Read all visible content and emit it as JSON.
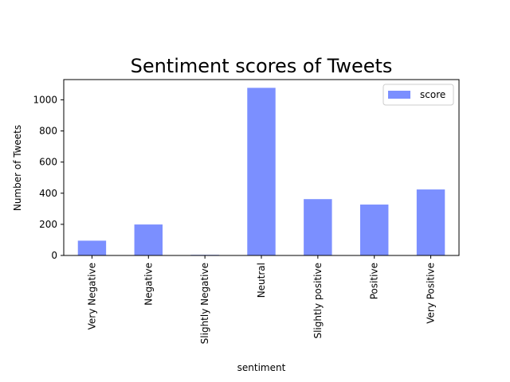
{
  "chart_data": {
    "type": "bar",
    "title": "Sentiment scores of Tweets",
    "xlabel": "sentiment",
    "ylabel": "Number of Tweets",
    "categories": [
      "Very Negative",
      "Negative",
      "Slightly Negative",
      "Neutral",
      "Slightly positive",
      "Positive",
      "Very Positive"
    ],
    "series": [
      {
        "name": "score",
        "values": [
          95,
          199,
          4,
          1077,
          362,
          327,
          424
        ],
        "color": "#7b8fff"
      }
    ],
    "ylim": [
      0,
      1130
    ],
    "yticks": [
      0,
      200,
      400,
      600,
      800,
      1000
    ],
    "grid": false,
    "legend": "upper-right"
  }
}
